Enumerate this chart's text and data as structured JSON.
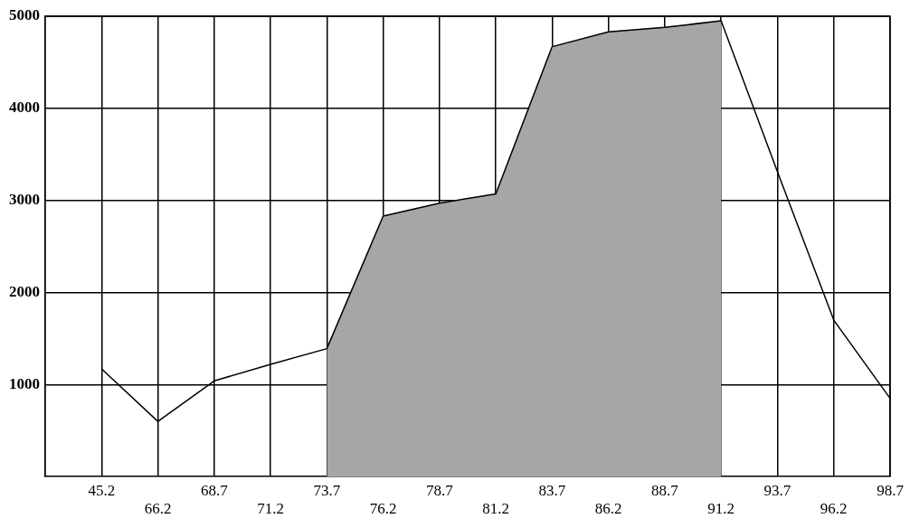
{
  "chart_data": {
    "type": "line",
    "categories": [
      null,
      "45.2",
      "66.2",
      "68.7",
      "71.2",
      "73.7",
      "76.2",
      "78.7",
      "81.2",
      "83.7",
      "86.2",
      "88.7",
      "91.2",
      "93.7",
      "96.2",
      "98.7"
    ],
    "series": [
      {
        "type": "area",
        "color": "#a6a6a6",
        "values": [
          null,
          null,
          null,
          null,
          null,
          1390,
          2830,
          2970,
          3070,
          4670,
          4830,
          4880,
          4950,
          null,
          null,
          null
        ]
      },
      {
        "color": "#000000",
        "values": [
          null,
          1170,
          600,
          1040,
          1220,
          1390,
          2830,
          2970,
          3070,
          4670,
          4830,
          4880,
          4950,
          3310,
          1700,
          850
        ]
      }
    ],
    "ylim": [
      0,
      5000
    ],
    "yticks": [
      1000,
      2000,
      3000,
      4000,
      5000
    ],
    "grid": true,
    "legend": false,
    "marker": "none",
    "line_style": "solid"
  }
}
